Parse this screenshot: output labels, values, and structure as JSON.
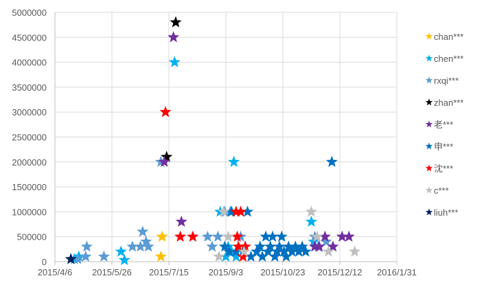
{
  "chart_data": {
    "type": "scatter",
    "marker": "star",
    "title": "",
    "xlabel": "",
    "ylabel": "",
    "xlim": [
      "2015-04-06",
      "2016-01-31"
    ],
    "ylim": [
      0,
      5000000
    ],
    "x_ticks": [
      "2015/4/6",
      "2015/5/26",
      "2015/7/15",
      "2015/9/3",
      "2015/10/23",
      "2015/12/12",
      "2016/1/31"
    ],
    "y_ticks": [
      "0",
      "500000",
      "1000000",
      "1500000",
      "2000000",
      "2500000",
      "3000000",
      "3500000",
      "4000000",
      "4500000",
      "5000000"
    ],
    "grid": true,
    "legend_position": "right",
    "series": [
      {
        "name": "chan***",
        "color": "#FFC000",
        "points": [
          {
            "x": "2015-07-08",
            "y": 100000
          },
          {
            "x": "2015-07-09",
            "y": 500000
          }
        ]
      },
      {
        "name": "chen***",
        "color": "#00B0F0",
        "points": [
          {
            "x": "2015-04-23",
            "y": 50000
          },
          {
            "x": "2015-04-27",
            "y": 100000
          },
          {
            "x": "2015-06-03",
            "y": 200000
          },
          {
            "x": "2015-06-06",
            "y": 30000
          },
          {
            "x": "2015-07-20",
            "y": 4000000
          },
          {
            "x": "2015-08-29",
            "y": 1000000
          },
          {
            "x": "2015-09-03",
            "y": 100000
          },
          {
            "x": "2015-09-05",
            "y": 300000
          },
          {
            "x": "2015-09-07",
            "y": 1000000
          },
          {
            "x": "2015-09-08",
            "y": 200000
          },
          {
            "x": "2015-09-10",
            "y": 2000000
          },
          {
            "x": "2015-09-12",
            "y": 100000
          },
          {
            "x": "2015-11-17",
            "y": 800000
          },
          {
            "x": "2015-11-19",
            "y": 400000
          }
        ]
      },
      {
        "name": "rxqi***",
        "color": "#5B9BD5",
        "points": [
          {
            "x": "2015-04-26",
            "y": 50000
          },
          {
            "x": "2015-05-03",
            "y": 100000
          },
          {
            "x": "2015-05-04",
            "y": 300000
          },
          {
            "x": "2015-05-19",
            "y": 100000
          },
          {
            "x": "2015-06-13",
            "y": 300000
          },
          {
            "x": "2015-06-20",
            "y": 300000
          },
          {
            "x": "2015-06-22",
            "y": 600000
          },
          {
            "x": "2015-06-25",
            "y": 400000
          },
          {
            "x": "2015-06-27",
            "y": 300000
          },
          {
            "x": "2015-07-08",
            "y": 2000000
          },
          {
            "x": "2015-08-18",
            "y": 500000
          },
          {
            "x": "2015-08-22",
            "y": 300000
          },
          {
            "x": "2015-08-27",
            "y": 500000
          },
          {
            "x": "2015-09-02",
            "y": 1000000
          },
          {
            "x": "2015-09-16",
            "y": 500000
          },
          {
            "x": "2015-11-20",
            "y": 500000
          },
          {
            "x": "2015-11-23",
            "y": 300000
          },
          {
            "x": "2015-11-30",
            "y": 400000
          }
        ]
      },
      {
        "name": "zhan***",
        "color": "#000000",
        "points": [
          {
            "x": "2015-07-13",
            "y": 2100000
          },
          {
            "x": "2015-07-21",
            "y": 4800000
          }
        ]
      },
      {
        "name": "老***",
        "color": "#7030A0",
        "points": [
          {
            "x": "2015-07-11",
            "y": 2000000
          },
          {
            "x": "2015-07-19",
            "y": 4500000
          },
          {
            "x": "2015-07-26",
            "y": 800000
          },
          {
            "x": "2015-11-20",
            "y": 300000
          },
          {
            "x": "2015-11-24",
            "y": 300000
          },
          {
            "x": "2015-11-29",
            "y": 500000
          },
          {
            "x": "2015-12-06",
            "y": 300000
          },
          {
            "x": "2015-12-14",
            "y": 500000
          },
          {
            "x": "2015-12-20",
            "y": 500000
          }
        ]
      },
      {
        "name": "申***",
        "color": "#0070C0",
        "points": [
          {
            "x": "2015-09-02",
            "y": 300000
          },
          {
            "x": "2015-09-06",
            "y": 200000
          },
          {
            "x": "2015-09-08",
            "y": 1000000
          },
          {
            "x": "2015-09-12",
            "y": 200000
          },
          {
            "x": "2015-09-18",
            "y": 200000
          },
          {
            "x": "2015-09-20",
            "y": 300000
          },
          {
            "x": "2015-09-22",
            "y": 1000000
          },
          {
            "x": "2015-09-25",
            "y": 100000
          },
          {
            "x": "2015-09-30",
            "y": 200000
          },
          {
            "x": "2015-10-03",
            "y": 300000
          },
          {
            "x": "2015-10-05",
            "y": 100000
          },
          {
            "x": "2015-10-08",
            "y": 500000
          },
          {
            "x": "2015-10-10",
            "y": 200000
          },
          {
            "x": "2015-10-12",
            "y": 300000
          },
          {
            "x": "2015-10-14",
            "y": 500000
          },
          {
            "x": "2015-10-16",
            "y": 100000
          },
          {
            "x": "2015-10-18",
            "y": 200000
          },
          {
            "x": "2015-10-20",
            "y": 300000
          },
          {
            "x": "2015-10-22",
            "y": 500000
          },
          {
            "x": "2015-10-24",
            "y": 200000
          },
          {
            "x": "2015-10-26",
            "y": 100000
          },
          {
            "x": "2015-10-28",
            "y": 300000
          },
          {
            "x": "2015-10-31",
            "y": 200000
          },
          {
            "x": "2015-11-03",
            "y": 300000
          },
          {
            "x": "2015-11-06",
            "y": 200000
          },
          {
            "x": "2015-11-09",
            "y": 300000
          },
          {
            "x": "2015-11-12",
            "y": 200000
          },
          {
            "x": "2015-12-05",
            "y": 2000000
          }
        ]
      },
      {
        "name": "沈***",
        "color": "#FF0000",
        "points": [
          {
            "x": "2015-07-12",
            "y": 3000000
          },
          {
            "x": "2015-07-25",
            "y": 500000
          },
          {
            "x": "2015-08-05",
            "y": 500000
          },
          {
            "x": "2015-09-12",
            "y": 1000000
          },
          {
            "x": "2015-09-13",
            "y": 500000
          },
          {
            "x": "2015-09-14",
            "y": 300000
          },
          {
            "x": "2015-09-16",
            "y": 1000000
          },
          {
            "x": "2015-09-18",
            "y": 100000
          },
          {
            "x": "2015-09-20",
            "y": 300000
          }
        ]
      },
      {
        "name": "c***",
        "color": "#BFBFBF",
        "points": [
          {
            "x": "2015-08-28",
            "y": 100000
          },
          {
            "x": "2015-09-01",
            "y": 1000000
          },
          {
            "x": "2015-09-05",
            "y": 500000
          },
          {
            "x": "2015-09-19",
            "y": 200000
          },
          {
            "x": "2015-11-17",
            "y": 1000000
          },
          {
            "x": "2015-11-22",
            "y": 500000
          },
          {
            "x": "2015-12-02",
            "y": 200000
          },
          {
            "x": "2015-12-25",
            "y": 200000
          }
        ]
      },
      {
        "name": "liuh***",
        "color": "#002060",
        "points": [
          {
            "x": "2015-04-20",
            "y": 50000
          }
        ]
      }
    ]
  }
}
